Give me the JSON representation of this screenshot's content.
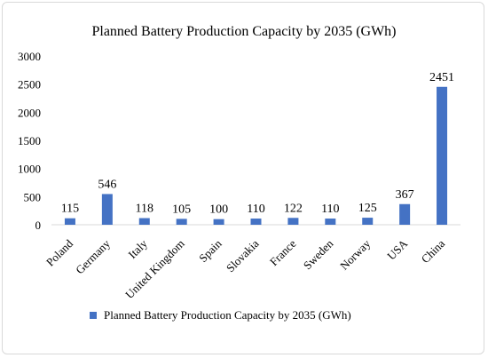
{
  "chart_data": {
    "type": "bar",
    "title": "Planned Battery Production Capacity by 2035 (GWh)",
    "xlabel": "",
    "ylabel": "",
    "categories": [
      "Poland",
      "Germany",
      "Italy",
      "United Kingdom",
      "Spain",
      "Slovakia",
      "France",
      "Sweden",
      "Norway",
      "USA",
      "China"
    ],
    "series": [
      {
        "name": "Planned Battery Production Capacity by 2035 (GWh)",
        "values": [
          115,
          546,
          118,
          105,
          100,
          110,
          122,
          110,
          125,
          367,
          2451
        ],
        "color": "#4472c4"
      }
    ],
    "ylim": [
      0,
      3000
    ],
    "yticks": [
      0,
      500,
      1000,
      1500,
      2000,
      2500,
      3000
    ],
    "grid": false,
    "data_labels": true,
    "legend_position": "bottom"
  }
}
